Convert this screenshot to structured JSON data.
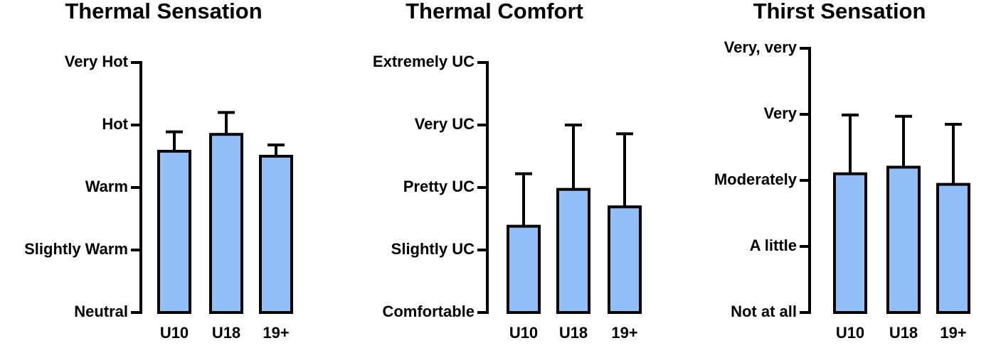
{
  "chart_data": [
    {
      "type": "bar",
      "title": "Thermal Sensation",
      "categories": [
        "U10",
        "U18",
        "19+"
      ],
      "values": [
        2.58,
        2.85,
        2.5
      ],
      "errors": [
        0.31,
        0.35,
        0.18
      ],
      "color": "#90bff9",
      "ylim": [
        0,
        4
      ],
      "yticks": [
        {
          "value": 0,
          "label": "Neutral"
        },
        {
          "value": 1,
          "label": "Slightly Warm"
        },
        {
          "value": 2,
          "label": "Warm"
        },
        {
          "value": 3,
          "label": "Hot"
        },
        {
          "value": 4,
          "label": "Very Hot"
        }
      ]
    },
    {
      "type": "bar",
      "title": "Thermal Comfort",
      "categories": [
        "U10",
        "U18",
        "19+"
      ],
      "values": [
        1.38,
        1.97,
        1.69
      ],
      "errors": [
        0.84,
        1.03,
        1.17
      ],
      "color": "#90bff9",
      "ylim": [
        0,
        4
      ],
      "yticks": [
        {
          "value": 0,
          "label": "Comfortable"
        },
        {
          "value": 1,
          "label": "Slightly UC"
        },
        {
          "value": 2,
          "label": "Pretty UC"
        },
        {
          "value": 3,
          "label": "Very UC"
        },
        {
          "value": 4,
          "label": "Extremely UC"
        }
      ]
    },
    {
      "type": "bar",
      "title": "Thirst Sensation",
      "categories": [
        "U10",
        "U18",
        "19+"
      ],
      "values": [
        2.1,
        2.2,
        1.94
      ],
      "errors": [
        0.89,
        0.77,
        0.91
      ],
      "color": "#90bff9",
      "ylim": [
        0,
        4
      ],
      "yticks": [
        {
          "value": 0,
          "label": "Not at all"
        },
        {
          "value": 1,
          "label": "A little"
        },
        {
          "value": 2,
          "label": "Moderately"
        },
        {
          "value": 3,
          "label": "Very"
        },
        {
          "value": 4,
          "label": "Very, very"
        }
      ]
    }
  ]
}
